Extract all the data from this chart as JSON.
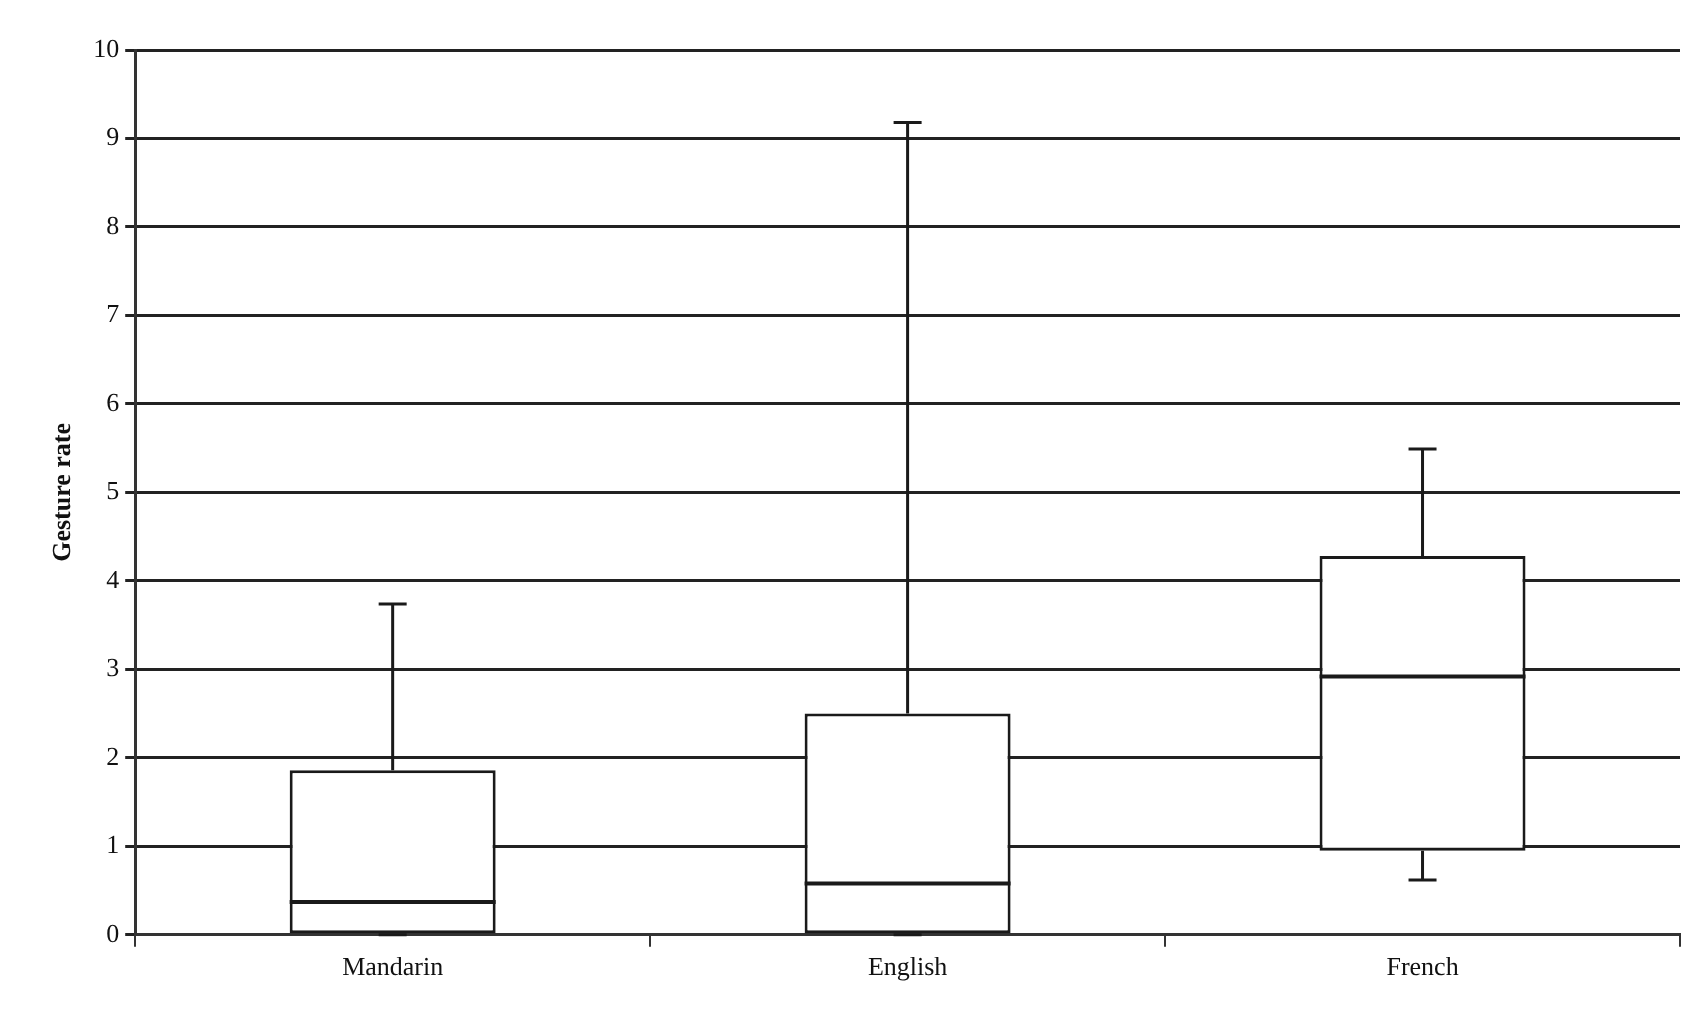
{
  "chart_data": {
    "type": "box",
    "ylabel": "Gesture rate",
    "categories": [
      "Mandarin",
      "English",
      "French"
    ],
    "boxes": [
      {
        "low": 0,
        "q1": 0,
        "median": 0.37,
        "q3": 1.86,
        "high": 3.74
      },
      {
        "low": 0,
        "q1": 0,
        "median": 0.58,
        "q3": 2.5,
        "high": 9.18
      },
      {
        "low": 0.62,
        "q1": 0.95,
        "median": 2.92,
        "q3": 4.28,
        "high": 5.49
      }
    ],
    "color": "#1a1a1a",
    "ylim": [
      0,
      10
    ],
    "yticks": [
      0,
      1,
      2,
      3,
      4,
      5,
      6,
      7,
      8,
      9,
      10
    ],
    "grid": "y"
  }
}
